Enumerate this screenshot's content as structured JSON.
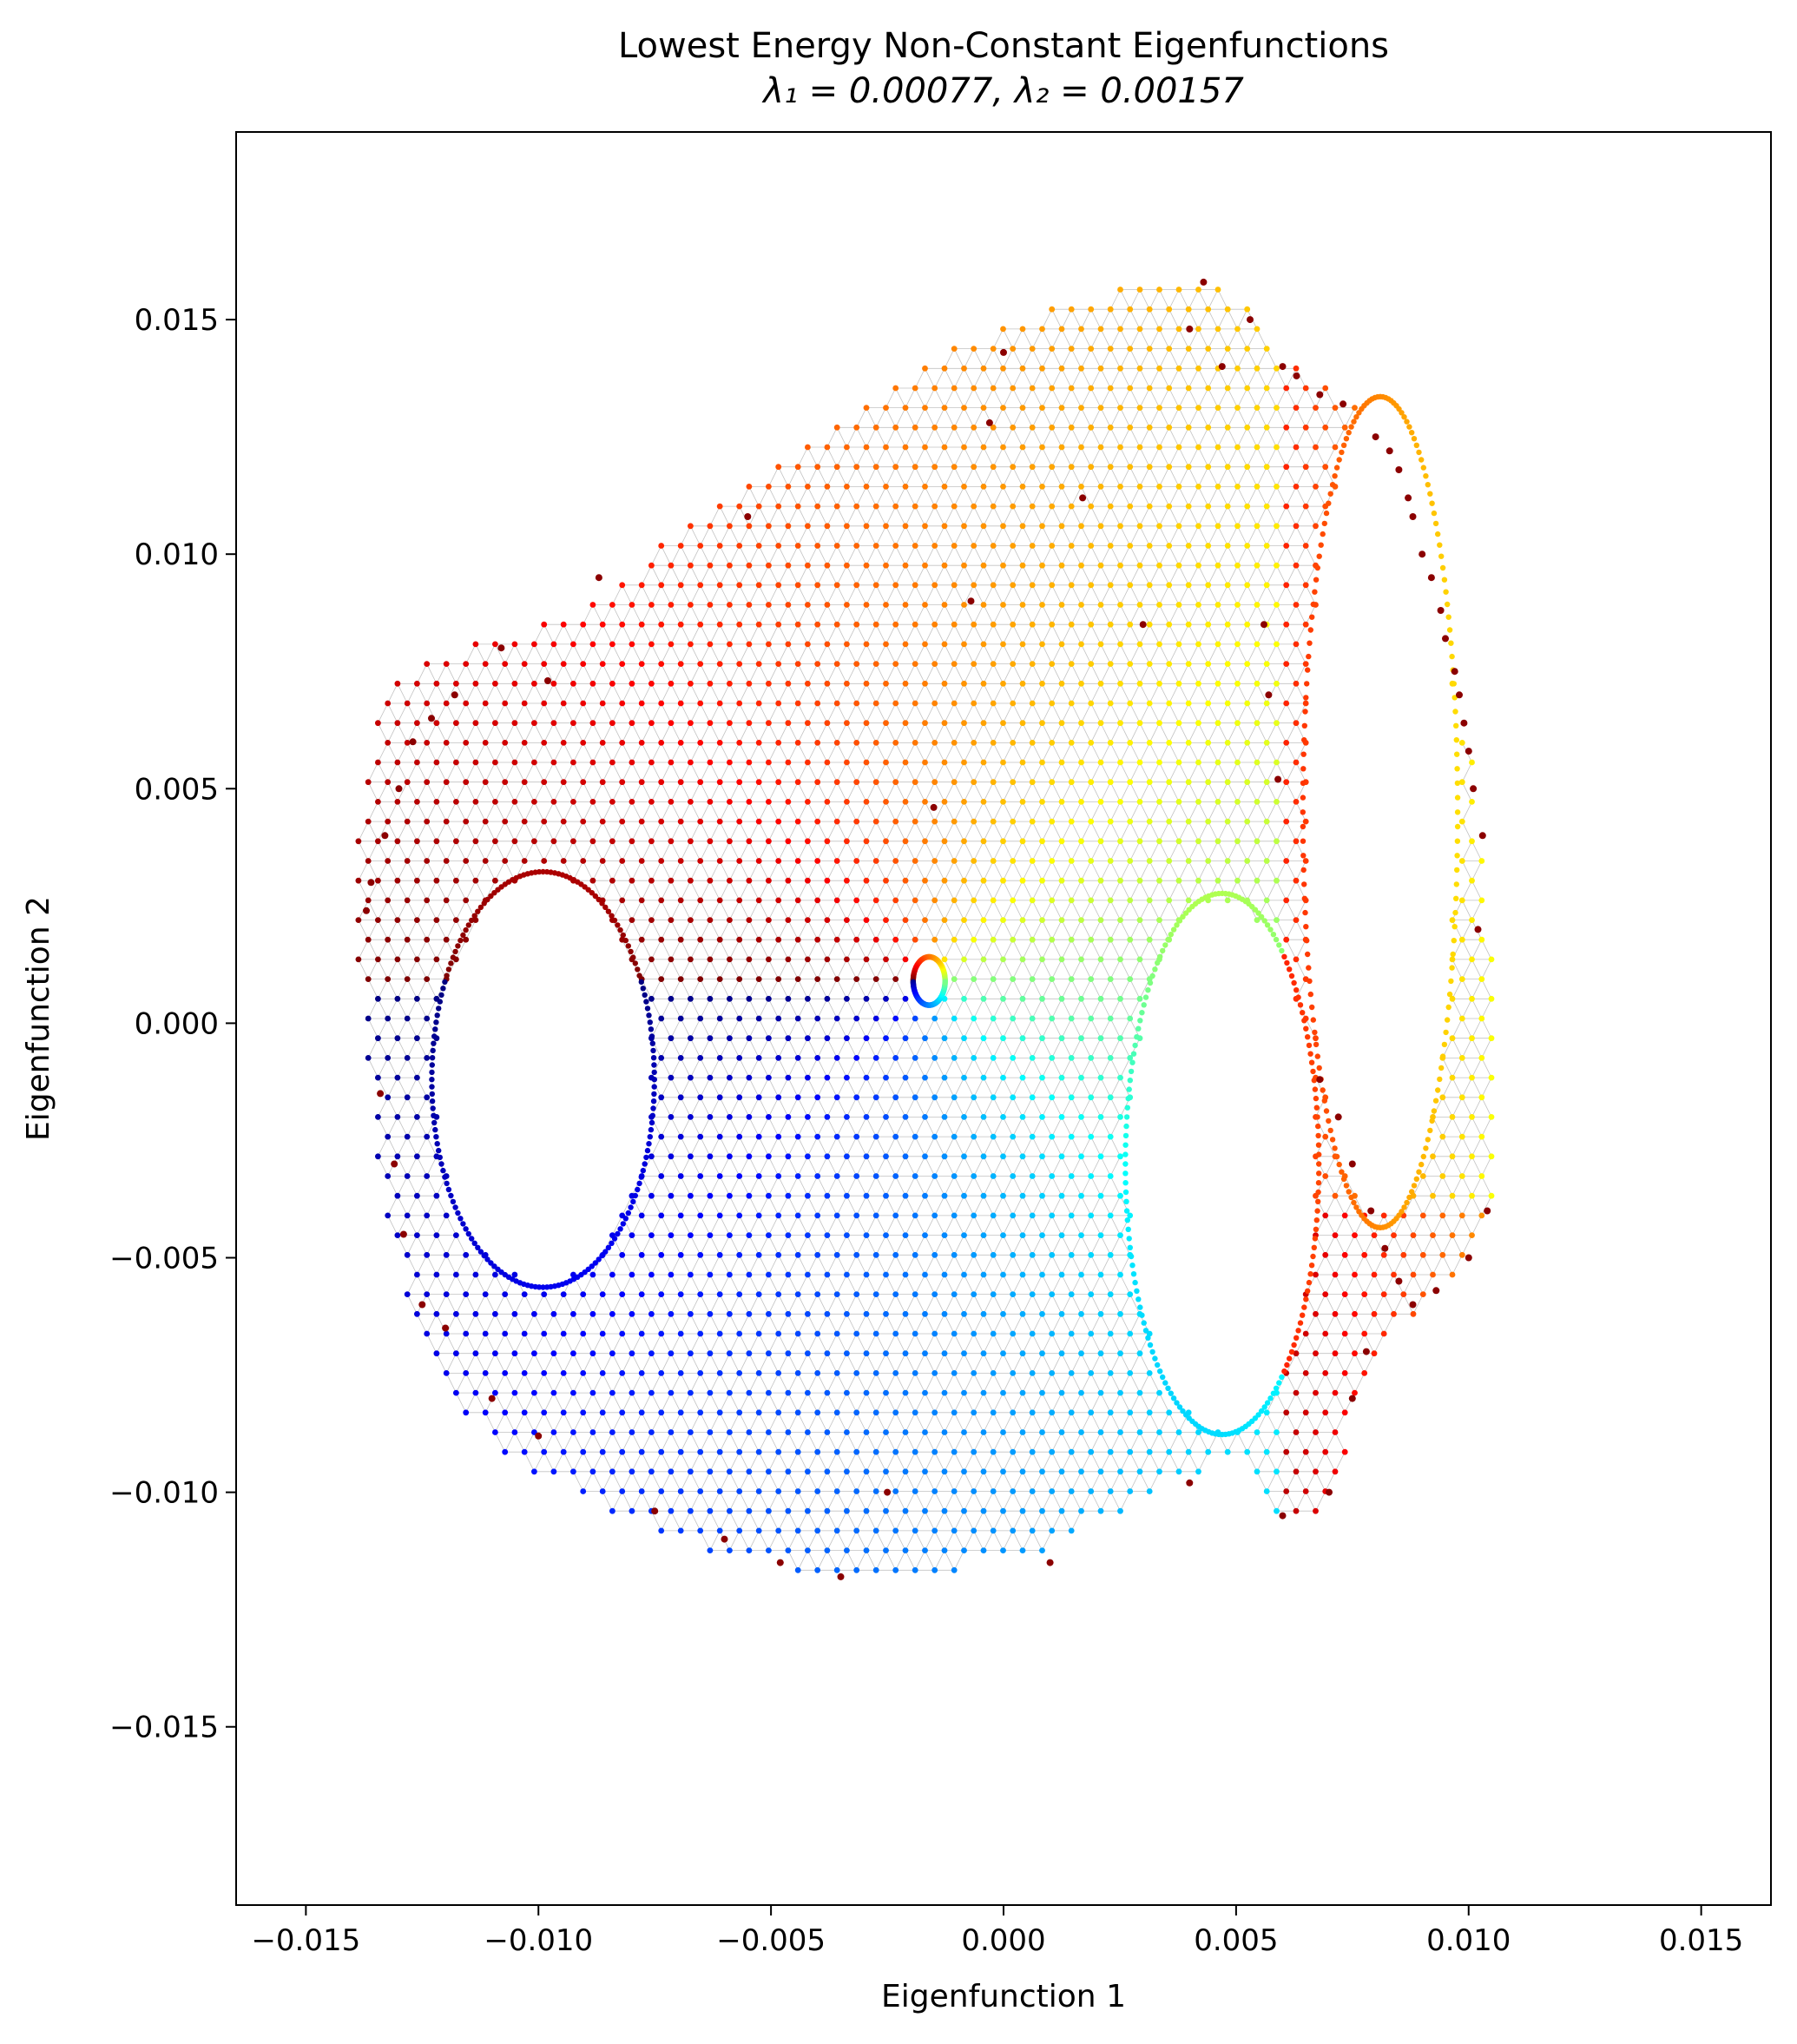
{
  "chart_data": {
    "type": "scatter",
    "title": "Lowest Energy Non-Constant Eigenfunctions",
    "subtitle": "λ₁ = 0.00077, λ₂ = 0.00157",
    "xlabel": "Eigenfunction 1",
    "ylabel": "Eigenfunction 2",
    "xlim": [
      -0.0165,
      0.0165
    ],
    "ylim": [
      -0.0188,
      0.019
    ],
    "xticks": [
      -0.015,
      -0.01,
      -0.005,
      0.0,
      0.005,
      0.01,
      0.015
    ],
    "yticks": [
      0.015,
      0.01,
      0.005,
      0.0,
      -0.005,
      -0.01,
      -0.015
    ],
    "xtick_labels": [
      "−0.015",
      "−0.010",
      "−0.005",
      "0.000",
      "0.005",
      "0.010",
      "0.015"
    ],
    "ytick_labels": [
      "0.015",
      "0.010",
      "0.005",
      "0.000",
      "−0.005",
      "−0.010",
      "−0.015"
    ],
    "grid": false,
    "legend": "none",
    "colormap": "jet",
    "mesh_color": "#9a9a9a",
    "outlier_color": "#8b0000",
    "outline": [
      [
        -0.014,
        0.003
      ],
      [
        -0.0138,
        0.005
      ],
      [
        -0.0133,
        0.007
      ],
      [
        -0.0122,
        0.008
      ],
      [
        -0.0105,
        0.0083
      ],
      [
        -0.009,
        0.009
      ],
      [
        -0.007,
        0.0105
      ],
      [
        -0.005,
        0.012
      ],
      [
        -0.003,
        0.0133
      ],
      [
        -0.001,
        0.0145
      ],
      [
        0.001,
        0.0153
      ],
      [
        0.003,
        0.0158
      ],
      [
        0.0045,
        0.016
      ],
      [
        0.0055,
        0.0152
      ],
      [
        0.0063,
        0.014
      ],
      [
        0.0071,
        0.0136
      ],
      [
        0.0079,
        0.013
      ],
      [
        0.0088,
        0.011
      ],
      [
        0.0096,
        0.008
      ],
      [
        0.0102,
        0.005
      ],
      [
        0.0106,
        0.001
      ],
      [
        0.0107,
        -0.003
      ],
      [
        0.0105,
        -0.0045
      ],
      [
        0.0098,
        -0.0052
      ],
      [
        0.0092,
        -0.006
      ],
      [
        0.0086,
        -0.0065
      ],
      [
        0.008,
        -0.007
      ],
      [
        0.0076,
        -0.0085
      ],
      [
        0.0072,
        -0.01
      ],
      [
        0.0066,
        -0.0108
      ],
      [
        0.0058,
        -0.0104
      ],
      [
        0.005,
        -0.0093
      ],
      [
        0.0035,
        -0.01
      ],
      [
        0.001,
        -0.0112
      ],
      [
        -0.0015,
        -0.0119
      ],
      [
        -0.004,
        -0.0118
      ],
      [
        -0.0065,
        -0.0112
      ],
      [
        -0.009,
        -0.0102
      ],
      [
        -0.0108,
        -0.0092
      ],
      [
        -0.012,
        -0.008
      ],
      [
        -0.0128,
        -0.006
      ],
      [
        -0.0133,
        -0.004
      ],
      [
        -0.0137,
        -0.001
      ]
    ],
    "holes": [
      {
        "cx": -0.0099,
        "cy": -0.0012,
        "rx": 0.0023,
        "ry": 0.0043
      },
      {
        "cx": 0.0047,
        "cy": -0.003,
        "rx": 0.002,
        "ry": 0.0056
      },
      {
        "cx": 0.0081,
        "cy": 0.0045,
        "rx": 0.0016,
        "ry": 0.0086
      },
      {
        "cx": -0.0016,
        "cy": 0.0009,
        "rx": 0.00033,
        "ry": 0.0005
      }
    ],
    "outliers": [
      [
        0.0043,
        0.0158
      ],
      [
        0.0053,
        0.015
      ],
      [
        0.006,
        0.014
      ],
      [
        0.0063,
        0.0138
      ],
      [
        0.0068,
        0.0134
      ],
      [
        0.0073,
        0.0132
      ],
      [
        0.008,
        0.0125
      ],
      [
        0.0083,
        0.0122
      ],
      [
        0.0085,
        0.0118
      ],
      [
        0.0087,
        0.0112
      ],
      [
        0.0088,
        0.0108
      ],
      [
        0.009,
        0.01
      ],
      [
        0.0092,
        0.0095
      ],
      [
        0.0094,
        0.0088
      ],
      [
        0.0095,
        0.0082
      ],
      [
        0.0097,
        0.0075
      ],
      [
        0.0098,
        0.007
      ],
      [
        0.0099,
        0.0064
      ],
      [
        0.01,
        0.0058
      ],
      [
        0.0101,
        0.005
      ],
      [
        0.0103,
        0.004
      ],
      [
        0.0102,
        0.002
      ],
      [
        0.0104,
        -0.004
      ],
      [
        0.01,
        -0.005
      ],
      [
        0.0093,
        -0.0057
      ],
      [
        0.0088,
        -0.006
      ],
      [
        0.0085,
        -0.0055
      ],
      [
        0.0082,
        -0.0048
      ],
      [
        0.0079,
        -0.004
      ],
      [
        0.0075,
        -0.003
      ],
      [
        0.0072,
        -0.002
      ],
      [
        0.0068,
        -0.0012
      ],
      [
        0.0059,
        0.0052
      ],
      [
        0.0057,
        0.007
      ],
      [
        0.0056,
        0.0085
      ],
      [
        0.0047,
        0.014
      ],
      [
        0.004,
        0.0148
      ],
      [
        0.0,
        0.0143
      ],
      [
        -0.0003,
        0.0128
      ],
      [
        -0.0007,
        0.009
      ],
      [
        -0.0015,
        0.0046
      ],
      [
        0.0017,
        0.0112
      ],
      [
        0.003,
        0.0085
      ],
      [
        -0.0055,
        0.0108
      ],
      [
        -0.0087,
        0.0095
      ],
      [
        -0.0098,
        0.0073
      ],
      [
        -0.0108,
        0.008
      ],
      [
        -0.0118,
        0.007
      ],
      [
        -0.0123,
        0.0065
      ],
      [
        -0.0127,
        0.006
      ],
      [
        -0.013,
        0.005
      ],
      [
        -0.0133,
        0.004
      ],
      [
        -0.0136,
        0.003
      ],
      [
        -0.0137,
        0.0024
      ],
      [
        -0.0134,
        -0.0015
      ],
      [
        -0.0131,
        -0.003
      ],
      [
        -0.0129,
        -0.0045
      ],
      [
        -0.0125,
        -0.006
      ],
      [
        -0.012,
        -0.0065
      ],
      [
        -0.011,
        -0.008
      ],
      [
        -0.01,
        -0.0088
      ],
      [
        -0.0075,
        -0.0104
      ],
      [
        -0.006,
        -0.011
      ],
      [
        -0.0048,
        -0.0115
      ],
      [
        -0.0035,
        -0.0118
      ],
      [
        -0.0025,
        -0.01
      ],
      [
        0.001,
        -0.0115
      ],
      [
        0.004,
        -0.0098
      ],
      [
        0.006,
        -0.0105
      ],
      [
        0.007,
        -0.01
      ],
      [
        0.0075,
        -0.008
      ],
      [
        0.0078,
        -0.007
      ]
    ]
  }
}
